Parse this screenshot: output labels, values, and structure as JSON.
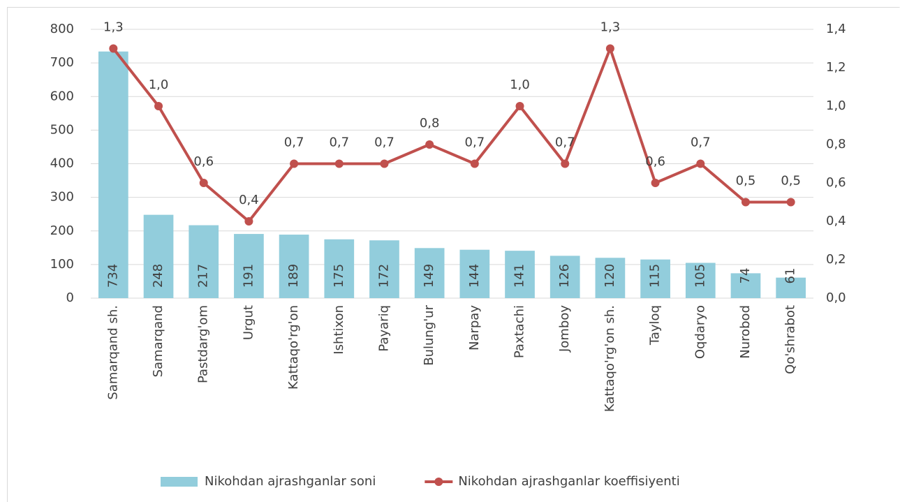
{
  "chart_data": {
    "type": "bar",
    "categories": [
      "Samarqand sh.",
      "Samarqand",
      "Pastdarg'om",
      "Urgut",
      "Kattaqo'rg'on",
      "Ishtixon",
      "Payariq",
      "Bulung'ur",
      "Narpay",
      "Paxtachi",
      "Jomboy",
      "Kattaqo'rg'on sh.",
      "Tayloq",
      "Oqdaryo",
      "Nurobod",
      "Qo'shrabot"
    ],
    "series": [
      {
        "name": "Nikohdan ajrashganlar soni",
        "type": "bar",
        "color": "#92cddc",
        "values": [
          734,
          248,
          217,
          191,
          189,
          175,
          172,
          149,
          144,
          141,
          126,
          120,
          115,
          105,
          74,
          61
        ]
      },
      {
        "name": "Nikohdan ajrashganlar koeffisiyenti",
        "type": "line",
        "axis": "y2",
        "color": "#c0504d",
        "values": [
          1.3,
          1.0,
          0.6,
          0.4,
          0.7,
          0.7,
          0.7,
          0.8,
          0.7,
          1.0,
          0.7,
          1.3,
          0.6,
          0.7,
          0.5,
          0.5
        ],
        "value_labels": [
          "1,3",
          "1,0",
          "0,6",
          "0,4",
          "0,7",
          "0,7",
          "0,7",
          "0,8",
          "0,7",
          "1,0",
          "0,7",
          "1,3",
          "0,6",
          "0,7",
          "0,5",
          "0,5"
        ]
      }
    ],
    "ylim": [
      0,
      800
    ],
    "yticks": [
      0,
      100,
      200,
      300,
      400,
      500,
      600,
      700,
      800
    ],
    "y2lim": [
      0,
      1.4
    ],
    "y2ticks": [
      {
        "value": 0,
        "label": "0,0"
      },
      {
        "value": 0.2,
        "label": "0,2"
      },
      {
        "value": 0.4,
        "label": "0,4"
      },
      {
        "value": 0.6,
        "label": "0,6"
      },
      {
        "value": 0.8,
        "label": "0,8"
      },
      {
        "value": 1.0,
        "label": "1,0"
      },
      {
        "value": 1.2,
        "label": "1,2"
      },
      {
        "value": 1.4,
        "label": "1,4"
      }
    ],
    "grid": true,
    "legend": "bottom"
  }
}
